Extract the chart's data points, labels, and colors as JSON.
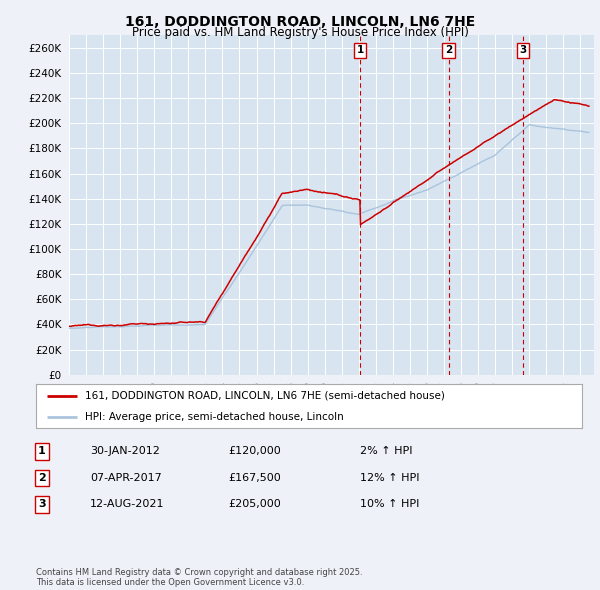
{
  "title_line1": "161, DODDINGTON ROAD, LINCOLN, LN6 7HE",
  "title_line2": "Price paid vs. HM Land Registry's House Price Index (HPI)",
  "ylim": [
    0,
    270000
  ],
  "yticks": [
    0,
    20000,
    40000,
    60000,
    80000,
    100000,
    120000,
    140000,
    160000,
    180000,
    200000,
    220000,
    240000,
    260000
  ],
  "background_color": "#eef2f8",
  "plot_bg": "#d8e4f0",
  "legend_label_red": "161, DODDINGTON ROAD, LINCOLN, LN6 7HE (semi-detached house)",
  "legend_label_blue": "HPI: Average price, semi-detached house, Lincoln",
  "transactions": [
    {
      "num": 1,
      "date": "30-JAN-2012",
      "price": 120000,
      "pct": "2%",
      "x": 2012.08
    },
    {
      "num": 2,
      "date": "07-APR-2017",
      "price": 167500,
      "pct": "12%",
      "x": 2017.27
    },
    {
      "num": 3,
      "date": "12-AUG-2021",
      "price": 205000,
      "pct": "10%",
      "x": 2021.62
    }
  ],
  "footer": "Contains HM Land Registry data © Crown copyright and database right 2025.\nThis data is licensed under the Open Government Licence v3.0.",
  "red_color": "#cc0000",
  "hpi_color": "#aac4dd",
  "xlim_start": 1995,
  "xlim_end": 2025.8
}
